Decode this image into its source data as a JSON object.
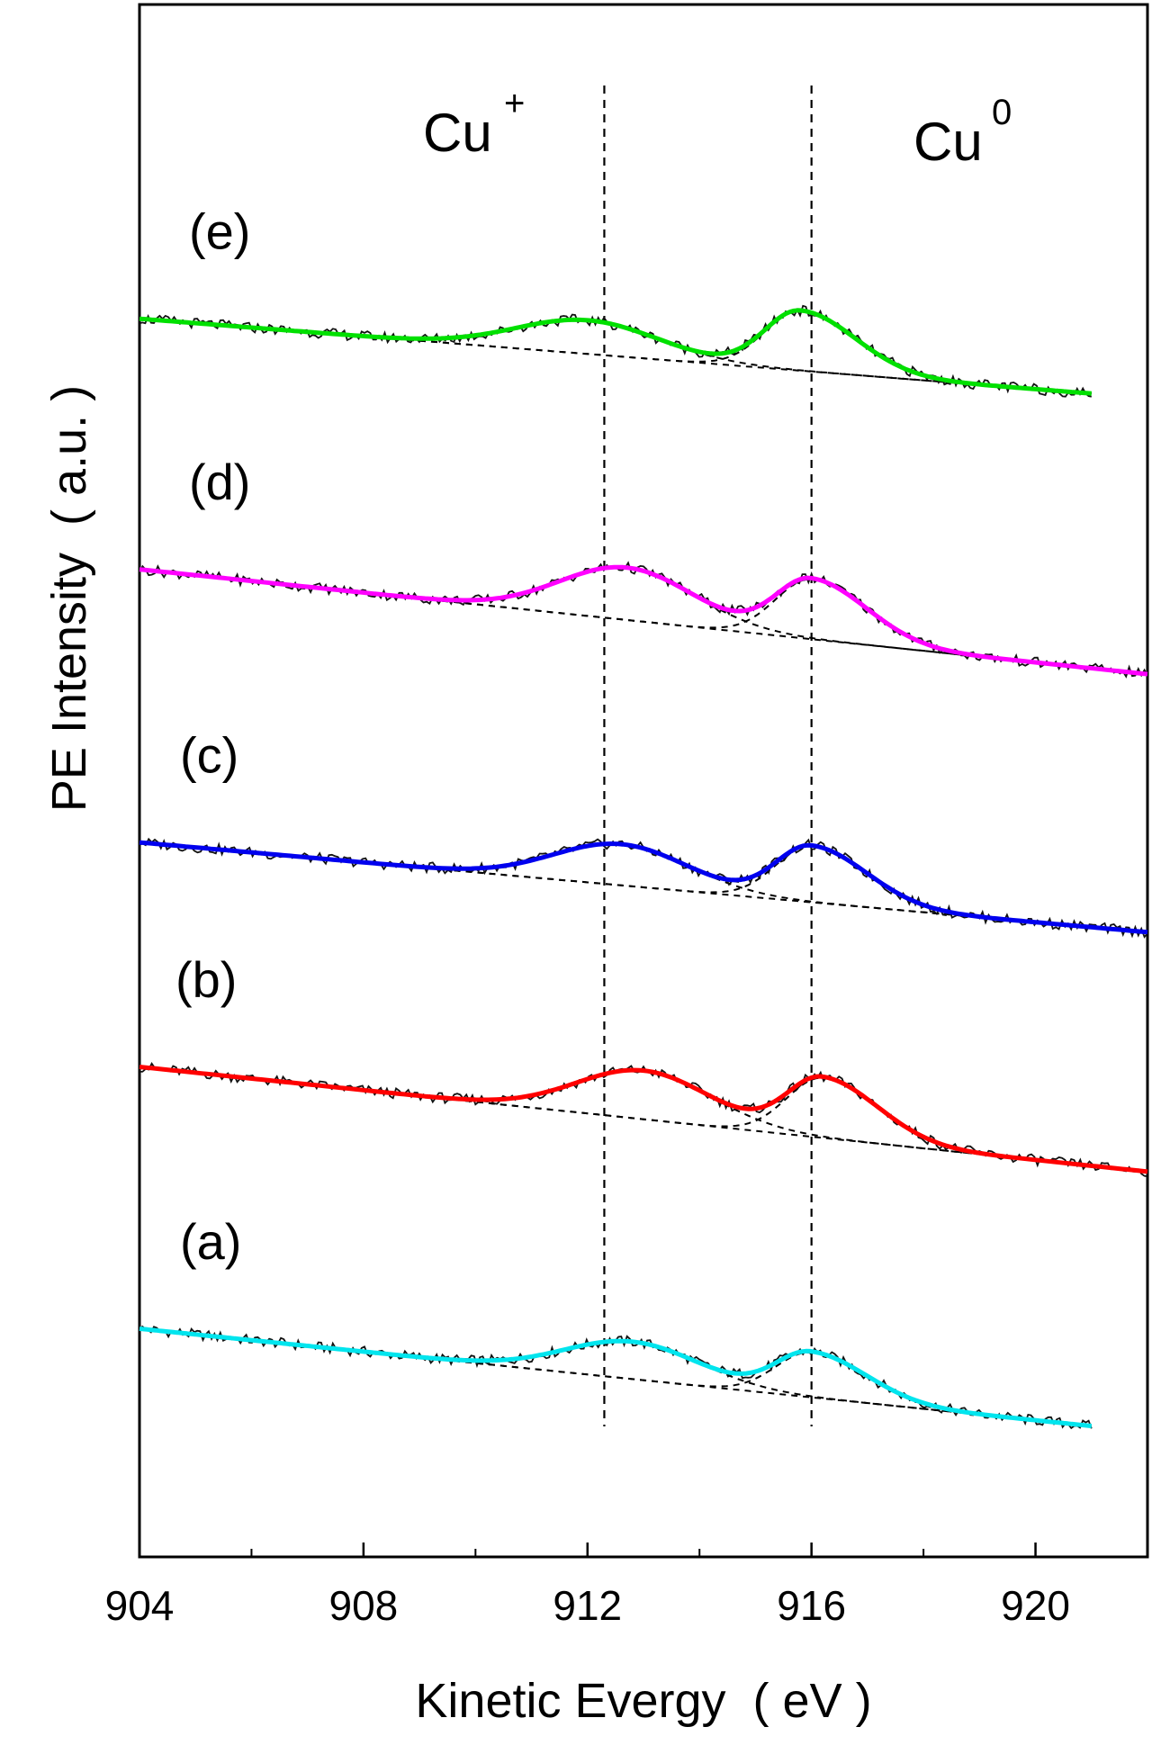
{
  "chart_data": {
    "type": "line",
    "title": "",
    "xlabel": "Kinetic Evergy  ( eV )",
    "ylabel": "PE Intensity  ( a.u. )",
    "xlim": [
      904,
      922
    ],
    "xticks": [
      "904",
      "908",
      "912",
      "916",
      "920"
    ],
    "y_ticks_shown": false,
    "grid": false,
    "legend": "none",
    "annotations": {
      "cu_plus": {
        "text": "Cu",
        "sup": "+"
      },
      "cu_zero": {
        "text": "Cu",
        "sup": "0"
      }
    },
    "reference_lines": [
      {
        "name": "cu-plus-position",
        "x": 912.3,
        "style": "dashed"
      },
      {
        "name": "cu-zero-position",
        "x": 916.0,
        "style": "dashed"
      }
    ],
    "series": [
      {
        "label": "(a)",
        "fit_color": "#00e5ee",
        "x_end": 921.0,
        "baseline_start": 2.6,
        "baseline_end": 0.0,
        "cu_plus": {
          "center": 912.8,
          "amp": 1.0,
          "width": 1.7
        },
        "cu_zero": {
          "center": 916.0,
          "amp": 1.2,
          "width": 0.9,
          "tail": 1.4
        }
      },
      {
        "label": "(b)",
        "fit_color": "#ff0000",
        "x_end": 922.0,
        "baseline_start": 9.6,
        "baseline_end": 6.8,
        "cu_plus": {
          "center": 913.0,
          "amp": 1.3,
          "width": 1.7
        },
        "cu_zero": {
          "center": 916.2,
          "amp": 1.6,
          "width": 0.9,
          "tail": 1.4
        }
      },
      {
        "label": "(c)",
        "fit_color": "#0000ee",
        "x_end": 922.0,
        "baseline_start": 15.6,
        "baseline_end": 13.2,
        "cu_plus": {
          "center": 912.6,
          "amp": 1.1,
          "width": 1.7
        },
        "cu_zero": {
          "center": 916.0,
          "amp": 1.5,
          "width": 0.9,
          "tail": 1.4
        }
      },
      {
        "label": "(d)",
        "fit_color": "#ff00ff",
        "x_end": 922.0,
        "baseline_start": 22.9,
        "baseline_end": 20.1,
        "cu_plus": {
          "center": 912.7,
          "amp": 1.4,
          "width": 1.7
        },
        "cu_zero": {
          "center": 916.0,
          "amp": 1.6,
          "width": 0.9,
          "tail": 1.4
        }
      },
      {
        "label": "(e)",
        "fit_color": "#00e000",
        "x_end": 921.0,
        "baseline_start": 29.6,
        "baseline_end": 27.6,
        "cu_plus": {
          "center": 912.0,
          "amp": 0.9,
          "width": 1.8
        },
        "cu_zero": {
          "center": 915.8,
          "amp": 1.6,
          "width": 0.9,
          "tail": 1.4
        }
      }
    ]
  }
}
